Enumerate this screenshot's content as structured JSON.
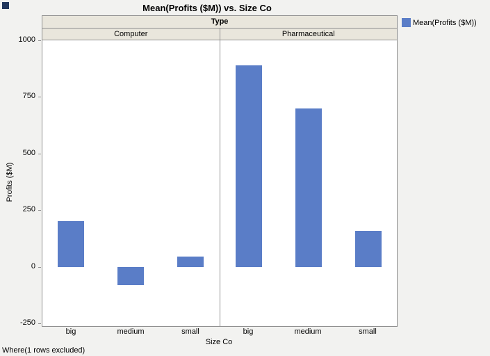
{
  "footnote": "Where(1 rows excluded)",
  "chart_data": {
    "type": "bar",
    "title": "Mean(Profits ($M)) vs. Size Co",
    "group_axis_label": "Type",
    "categories": [
      "big",
      "medium",
      "small"
    ],
    "series": [
      {
        "name": "Computer",
        "values": [
          200,
          -80,
          45
        ]
      },
      {
        "name": "Pharmaceutical",
        "values": [
          890,
          700,
          160
        ]
      }
    ],
    "xlabel": "Size Co",
    "ylabel": "Profits ($M)",
    "ylim": [
      -250,
      1000
    ],
    "yticks": [
      1000,
      750,
      500,
      250,
      0,
      -250
    ],
    "grid": false,
    "legend": {
      "position": "top-right",
      "label": "Mean(Profits ($M))"
    },
    "colors": {
      "bar": "#5a7dc7",
      "header_bg": "#e9e6dc",
      "border": "#8f8f8f",
      "panel_bg": "#ffffff",
      "page_bg": "#f2f2f0"
    }
  }
}
